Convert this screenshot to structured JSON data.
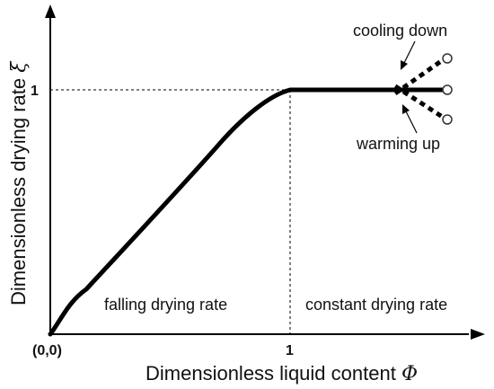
{
  "diagram": {
    "x_axis": {
      "label": "Dimensionless liquid content",
      "symbol": "Φ",
      "origin_label": "(0,0)",
      "tick_label": "1"
    },
    "y_axis": {
      "label": "Dimensionless drying rate",
      "symbol": "ξ",
      "tick_label": "1"
    },
    "regions": {
      "left": "falling drying rate",
      "right": "constant drying rate"
    },
    "annotations": {
      "upper": "cooling down",
      "lower": "warming up"
    },
    "curve": {
      "description_points": [
        {
          "phi": 0.0,
          "xi": 0.0
        },
        {
          "phi": 0.2,
          "xi": 0.22
        },
        {
          "phi": 0.6,
          "xi": 0.75
        },
        {
          "phi": 1.0,
          "xi": 1.0
        },
        {
          "phi": 1.67,
          "xi": 1.0
        }
      ],
      "color": "#000000",
      "style": "solid"
    },
    "branches": {
      "cooling_end_xi": 1.14,
      "warming_end_xi": 0.86,
      "style": "dotted"
    }
  }
}
